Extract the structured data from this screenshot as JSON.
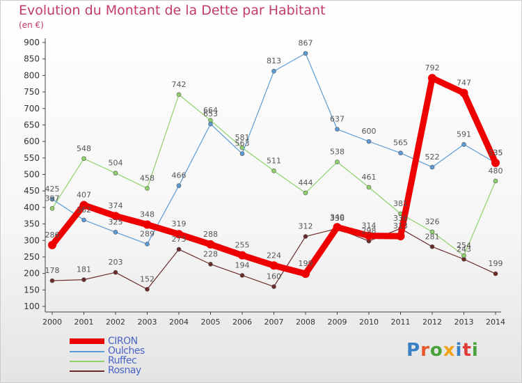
{
  "title": "Evolution du Montant de la Dette par Habitant",
  "unit": "(en €)",
  "logo": {
    "text": "Proxiti",
    "colors": [
      "#3b7fc4",
      "#e8582a",
      "#4aa23c",
      "#f0a21a",
      "#3b7fc4",
      "#e23a3a",
      "#4aa23c"
    ]
  },
  "chart_data": {
    "type": "line",
    "title": "Evolution du Montant de la Dette par Habitant",
    "ylabel": "(en €)",
    "xlabel": "",
    "categories": [
      "2000",
      "2001",
      "2002",
      "2003",
      "2004",
      "2005",
      "2006",
      "2007",
      "2008",
      "2009",
      "2010",
      "2011",
      "2012",
      "2013",
      "2014"
    ],
    "ylim": [
      100,
      900
    ],
    "yticks": [
      100,
      150,
      200,
      250,
      300,
      350,
      400,
      450,
      500,
      550,
      600,
      650,
      700,
      750,
      800,
      850,
      900
    ],
    "grid": false,
    "legend_position": "bottom-left",
    "series": [
      {
        "name": "CIRON",
        "color": "#ee0000",
        "values": [
          286,
          407,
          374,
          348,
          319,
          288,
          255,
          224,
          199,
          340,
          314,
          313,
          792,
          747,
          535
        ],
        "labels": [
          "286",
          "407",
          "374",
          "348",
          "319",
          "288",
          "255",
          "224",
          "199",
          "340",
          "314",
          "313",
          "792",
          "747",
          "535"
        ]
      },
      {
        "name": "Oulches",
        "color": "#5b9bd5",
        "values": [
          425,
          362,
          325,
          289,
          466,
          653,
          563,
          813,
          867,
          637,
          600,
          565,
          522,
          591,
          535
        ],
        "labels": [
          "425",
          "362",
          "325",
          "289",
          "466",
          "653",
          "563",
          "813",
          "867",
          "637",
          "600",
          "565",
          "522",
          "591",
          "535"
        ]
      },
      {
        "name": "Ruffec",
        "color": "#8fd16a",
        "values": [
          397,
          548,
          504,
          458,
          742,
          664,
          581,
          511,
          444,
          538,
          461,
          381,
          326,
          254,
          480
        ],
        "labels": [
          "397",
          "548",
          "504",
          "458",
          "742",
          "664",
          "581",
          "511",
          "444",
          "538",
          "461",
          "381",
          "326",
          "254",
          "480"
        ]
      },
      {
        "name": "Rosnay",
        "color": "#6b2a2a",
        "values": [
          178,
          181,
          203,
          152,
          273,
          228,
          194,
          160,
          312,
          336,
          298,
          336,
          281,
          243,
          199
        ],
        "labels": [
          "178",
          "181",
          "203",
          "152",
          "273",
          "228",
          "194",
          "160",
          "312",
          "336",
          "298",
          "336",
          "281",
          "243",
          "199"
        ]
      }
    ]
  }
}
